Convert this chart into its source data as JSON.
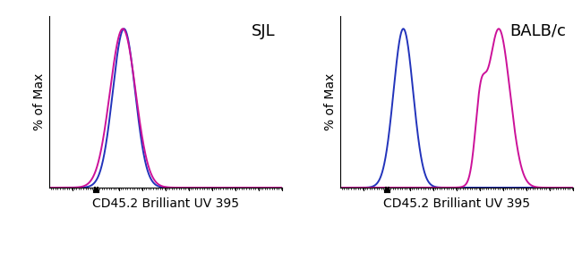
{
  "panel1_label": "SJL",
  "panel2_label": "BALB/c",
  "xlabel": "CD45.2 Brilliant UV 395",
  "ylabel": "% of Max",
  "blue_color": "#2233BB",
  "magenta_color": "#CC1199",
  "background_color": "#ffffff",
  "axis_label_fontsize": 10,
  "panel_label_fontsize": 13,
  "linewidth": 1.4,
  "sjl_blue_mu": 0.32,
  "sjl_blue_sigma": 0.048,
  "sjl_mag_mu": 0.315,
  "sjl_mag_sigma": 0.055,
  "balb_blue_mu": 0.27,
  "balb_blue_sigma": 0.042,
  "balb_mag_main_mu": 0.68,
  "balb_mag_main_sigma": 0.048,
  "balb_mag_shoulder_mu": 0.6,
  "balb_mag_shoulder_sigma": 0.022,
  "balb_mag_shoulder_amp": 0.4
}
